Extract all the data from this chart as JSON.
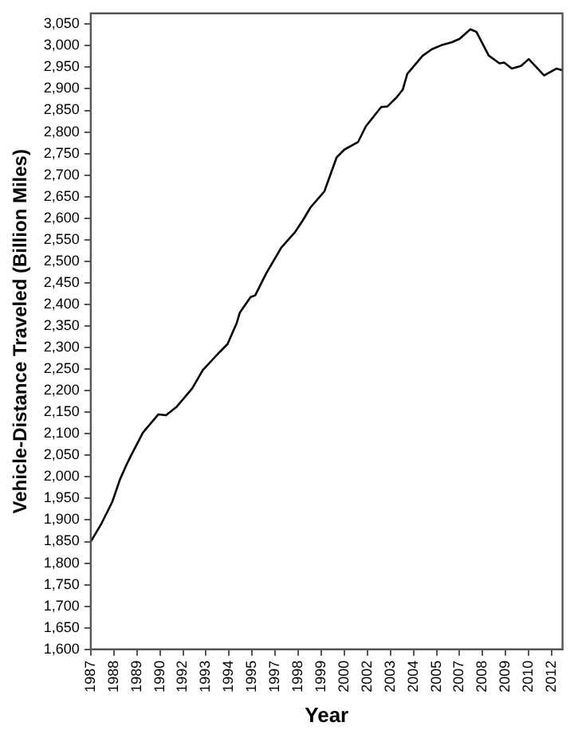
{
  "chart_data": {
    "type": "line",
    "xlabel": "Year",
    "ylabel": "Vehicle-Distance Traveled (Billion Miles)",
    "x": [
      "1987-01",
      "1987-08",
      "1988-03",
      "1988-08",
      "1988-12",
      "1989-03",
      "1989-11",
      "1990-09",
      "1991-02",
      "1991-09",
      "1992-07",
      "1993-02",
      "1994-01",
      "1994-06",
      "1994-12",
      "1995-02",
      "1995-09",
      "1995-12",
      "1996-07",
      "1997-05",
      "1998-02",
      "1998-07",
      "1998-12",
      "1999-09",
      "2000-05",
      "2000-10",
      "2001-07",
      "2001-12",
      "2002-10",
      "2003-02",
      "2003-08",
      "2003-12",
      "2004-03",
      "2005-01",
      "2005-07",
      "2006-01",
      "2006-08",
      "2007-01",
      "2007-08",
      "2007-12",
      "2008-08",
      "2009-03",
      "2009-06",
      "2009-11",
      "2010-05",
      "2010-10",
      "2011-08",
      "2012-04",
      "2012-08"
    ],
    "series": [
      {
        "color": "#000000",
        "values": [
          1850,
          1892,
          1942,
          1994,
          2026,
          2048,
          2103,
          2145,
          2143,
          2163,
          2205,
          2248,
          2290,
          2308,
          2357,
          2381,
          2417,
          2421,
          2471,
          2532,
          2568,
          2595,
          2625,
          2662,
          2741,
          2759,
          2777,
          2813,
          2858,
          2859,
          2880,
          2898,
          2935,
          2977,
          2992,
          3001,
          3008,
          3016,
          3038,
          3032,
          2977,
          2959,
          2961,
          2947,
          2953,
          2969,
          2931,
          2947,
          2943
        ]
      }
    ],
    "xlim": [
      "1987-01",
      "2012-08"
    ],
    "xticks": [
      {
        "value": "1987-01",
        "label": "1987"
      },
      {
        "value": "1988-04",
        "label": "1988"
      },
      {
        "value": "1989-07",
        "label": "1989"
      },
      {
        "value": "1990-10",
        "label": "1990"
      },
      {
        "value": "1992-01",
        "label": "1992"
      },
      {
        "value": "1993-04",
        "label": "1993"
      },
      {
        "value": "1994-07",
        "label": "1994"
      },
      {
        "value": "1995-10",
        "label": "1995"
      },
      {
        "value": "1997-01",
        "label": "1997"
      },
      {
        "value": "1998-04",
        "label": "1998"
      },
      {
        "value": "1999-07",
        "label": "1999"
      },
      {
        "value": "2000-10",
        "label": "2000"
      },
      {
        "value": "2002-01",
        "label": "2002"
      },
      {
        "value": "2003-04",
        "label": "2003"
      },
      {
        "value": "2004-07",
        "label": "2004"
      },
      {
        "value": "2005-10",
        "label": "2005"
      },
      {
        "value": "2007-01",
        "label": "2007"
      },
      {
        "value": "2008-04",
        "label": "2008"
      },
      {
        "value": "2009-07",
        "label": "2009"
      },
      {
        "value": "2010-10",
        "label": "2010"
      },
      {
        "value": "2012-01",
        "label": "2012"
      }
    ],
    "ylim": [
      1600,
      3075
    ],
    "yticks": [
      {
        "value": 1600,
        "label": "1,600"
      },
      {
        "value": 1650,
        "label": "1,650"
      },
      {
        "value": 1700,
        "label": "1,700"
      },
      {
        "value": 1750,
        "label": "1,750"
      },
      {
        "value": 1800,
        "label": "1,800"
      },
      {
        "value": 1850,
        "label": "1,850"
      },
      {
        "value": 1900,
        "label": "1,900"
      },
      {
        "value": 1950,
        "label": "1,950"
      },
      {
        "value": 2000,
        "label": "2,000"
      },
      {
        "value": 2050,
        "label": "2,050"
      },
      {
        "value": 2100,
        "label": "2,100"
      },
      {
        "value": 2150,
        "label": "2,150"
      },
      {
        "value": 2200,
        "label": "2,200"
      },
      {
        "value": 2250,
        "label": "2,250"
      },
      {
        "value": 2300,
        "label": "2,300"
      },
      {
        "value": 2350,
        "label": "2,350"
      },
      {
        "value": 2400,
        "label": "2,400"
      },
      {
        "value": 2450,
        "label": "2,450"
      },
      {
        "value": 2500,
        "label": "2,500"
      },
      {
        "value": 2550,
        "label": "2,550"
      },
      {
        "value": 2600,
        "label": "2,600"
      },
      {
        "value": 2650,
        "label": "2,650"
      },
      {
        "value": 2700,
        "label": "2,700"
      },
      {
        "value": 2750,
        "label": "2,750"
      },
      {
        "value": 2800,
        "label": "2,800"
      },
      {
        "value": 2850,
        "label": "2,850"
      },
      {
        "value": 2900,
        "label": "2,900"
      },
      {
        "value": 2950,
        "label": "2,950"
      },
      {
        "value": 3000,
        "label": "3,000"
      },
      {
        "value": 3050,
        "label": "3,050"
      }
    ],
    "grid": false,
    "legend": false,
    "marker": "none",
    "line_style": "solid"
  }
}
